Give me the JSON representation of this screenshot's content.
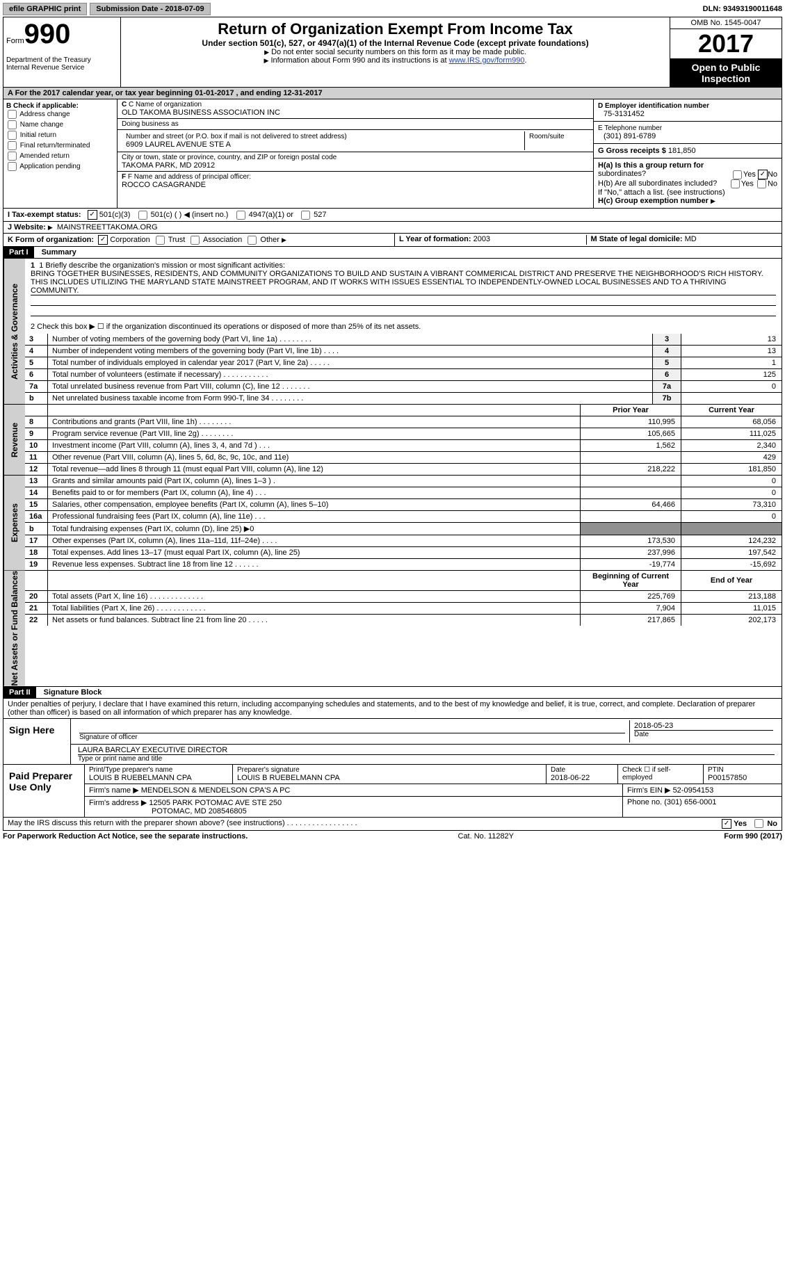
{
  "topbar": {
    "efile": "efile GRAPHIC print",
    "submission_label": "Submission Date - 2018-07-09",
    "dln": "DLN: 93493190011648"
  },
  "header": {
    "form_prefix": "Form",
    "form_number": "990",
    "dept1": "Department of the Treasury",
    "dept2": "Internal Revenue Service",
    "title": "Return of Organization Exempt From Income Tax",
    "subtitle": "Under section 501(c), 527, or 4947(a)(1) of the Internal Revenue Code (except private foundations)",
    "instr1": "Do not enter social security numbers on this form as it may be made public.",
    "instr2_pre": "Information about Form 990 and its instructions is at ",
    "instr2_link": "www.IRS.gov/form990",
    "omb": "OMB No. 1545-0047",
    "year": "2017",
    "open_pub": "Open to Public Inspection"
  },
  "row_a": "A  For the 2017 calendar year, or tax year beginning 01-01-2017   , and ending 12-31-2017",
  "col_b": {
    "label": "B Check if applicable:",
    "addr_change": "Address change",
    "name_change": "Name change",
    "initial": "Initial return",
    "final": "Final return/terminated",
    "amended": "Amended return",
    "app_pending": "Application pending"
  },
  "col_c": {
    "name_label": "C Name of organization",
    "name": "OLD TAKOMA BUSINESS ASSOCIATION INC",
    "dba_label": "Doing business as",
    "dba": "",
    "addr_label": "Number and street (or P.O. box if mail is not delivered to street address)",
    "room_label": "Room/suite",
    "addr": "6909 LAUREL AVENUE STE A",
    "city_label": "City or town, state or province, country, and ZIP or foreign postal code",
    "city": "TAKOMA PARK, MD  20912",
    "officer_label": "F Name and address of principal officer:",
    "officer": "ROCCO CASAGRANDE"
  },
  "col_d": {
    "ein_label": "D Employer identification number",
    "ein": "75-3131452",
    "tel_label": "E Telephone number",
    "tel": "(301) 891-6789",
    "gross_label": "G Gross receipts $",
    "gross": "181,850"
  },
  "col_h": {
    "ha_label": "H(a)  Is this a group return for",
    "ha_label2": "subordinates?",
    "hb_label": "H(b)  Are all subordinates included?",
    "hb_note": "If \"No,\" attach a list. (see instructions)",
    "hc_label": "H(c)  Group exemption number",
    "yes": "Yes",
    "no": "No"
  },
  "tax_exempt": {
    "label": "I  Tax-exempt status:",
    "c3": "501(c)(3)",
    "c": "501(c) (   )",
    "c_note": "(insert no.)",
    "a1": "4947(a)(1) or",
    "s527": "527"
  },
  "website": {
    "label": "J  Website:",
    "val": "MAINSTREETTAKOMA.ORG"
  },
  "row_k": {
    "label": "K Form of organization:",
    "corp": "Corporation",
    "trust": "Trust",
    "assoc": "Association",
    "other": "Other"
  },
  "row_lm": {
    "l_label": "L Year of formation:",
    "l_val": "2003",
    "m_label": "M State of legal domicile:",
    "m_val": "MD"
  },
  "part1": {
    "header": "Part I",
    "label": "Summary",
    "sidebar_gov": "Activities & Governance",
    "sidebar_rev": "Revenue",
    "sidebar_exp": "Expenses",
    "sidebar_net": "Net Assets or Fund Balances",
    "line1_label": "1  Briefly describe the organization's mission or most significant activities:",
    "mission": "BRING TOGETHER BUSINESSES, RESIDENTS, AND COMMUNITY ORGANIZATIONS TO BUILD AND SUSTAIN A VIBRANT COMMERICAL DISTRICT AND PRESERVE THE NEIGHBORHOOD'S RICH HISTORY. THIS INCLUDES UTILIZING THE MARYLAND STATE MAINSTREET PROGRAM, AND IT WORKS WITH ISSUES ESSENTIAL TO INDEPENDENTLY-OWNED LOCAL BUSINESSES AND TO A THRIVING COMMUNITY.",
    "line2": "2   Check this box ▶ ☐  if the organization discontinued its operations or disposed of more than 25% of its net assets.",
    "rows_gov": [
      {
        "n": "3",
        "desc": "Number of voting members of the governing body (Part VI, line 1a)  .  .  .  .  .  .  .  .",
        "ln": "3",
        "v": "13"
      },
      {
        "n": "4",
        "desc": "Number of independent voting members of the governing body (Part VI, line 1b)  .  .  .  .",
        "ln": "4",
        "v": "13"
      },
      {
        "n": "5",
        "desc": "Total number of individuals employed in calendar year 2017 (Part V, line 2a)  .  .  .  .  .",
        "ln": "5",
        "v": "1"
      },
      {
        "n": "6",
        "desc": "Total number of volunteers (estimate if necessary)  .  .  .  .  .  .  .  .  .  .  .",
        "ln": "6",
        "v": "125"
      },
      {
        "n": "7a",
        "desc": "Total unrelated business revenue from Part VIII, column (C), line 12  .  .  .  .  .  .  .",
        "ln": "7a",
        "v": "0"
      },
      {
        "n": "b",
        "desc": "Net unrelated business taxable income from Form 990-T, line 34  .  .  .  .  .  .  .  .",
        "ln": "7b",
        "v": ""
      }
    ],
    "col_prior": "Prior Year",
    "col_current": "Current Year",
    "rows_rev": [
      {
        "n": "8",
        "desc": "Contributions and grants (Part VIII, line 1h)  .  .  .  .  .  .  .  .",
        "p": "110,995",
        "c": "68,056"
      },
      {
        "n": "9",
        "desc": "Program service revenue (Part VIII, line 2g)  .  .  .  .  .  .  .  .",
        "p": "105,665",
        "c": "111,025"
      },
      {
        "n": "10",
        "desc": "Investment income (Part VIII, column (A), lines 3, 4, and 7d )  .  .  .",
        "p": "1,562",
        "c": "2,340"
      },
      {
        "n": "11",
        "desc": "Other revenue (Part VIII, column (A), lines 5, 6d, 8c, 9c, 10c, and 11e)",
        "p": "",
        "c": "429"
      },
      {
        "n": "12",
        "desc": "Total revenue—add lines 8 through 11 (must equal Part VIII, column (A), line 12)",
        "p": "218,222",
        "c": "181,850"
      }
    ],
    "rows_exp": [
      {
        "n": "13",
        "desc": "Grants and similar amounts paid (Part IX, column (A), lines 1–3 )  .",
        "p": "",
        "c": "0"
      },
      {
        "n": "14",
        "desc": "Benefits paid to or for members (Part IX, column (A), line 4)  .  .  .",
        "p": "",
        "c": "0"
      },
      {
        "n": "15",
        "desc": "Salaries, other compensation, employee benefits (Part IX, column (A), lines 5–10)",
        "p": "64,466",
        "c": "73,310"
      },
      {
        "n": "16a",
        "desc": "Professional fundraising fees (Part IX, column (A), line 11e)  .  .  .",
        "p": "",
        "c": "0"
      },
      {
        "n": "b",
        "desc": "Total fundraising expenses (Part IX, column (D), line 25) ▶0",
        "p": "grey",
        "c": "grey"
      },
      {
        "n": "17",
        "desc": "Other expenses (Part IX, column (A), lines 11a–11d, 11f–24e)  .  .  .  .",
        "p": "173,530",
        "c": "124,232"
      },
      {
        "n": "18",
        "desc": "Total expenses. Add lines 13–17 (must equal Part IX, column (A), line 25)",
        "p": "237,996",
        "c": "197,542"
      },
      {
        "n": "19",
        "desc": "Revenue less expenses. Subtract line 18 from line 12  .  .  .  .  .  .",
        "p": "-19,774",
        "c": "-15,692"
      }
    ],
    "col_begin": "Beginning of Current Year",
    "col_end": "End of Year",
    "rows_net": [
      {
        "n": "20",
        "desc": "Total assets (Part X, line 16)  .  .  .  .  .  .  .  .  .  .  .  .  .",
        "p": "225,769",
        "c": "213,188"
      },
      {
        "n": "21",
        "desc": "Total liabilities (Part X, line 26)  .  .  .  .  .  .  .  .  .  .  .  .",
        "p": "7,904",
        "c": "11,015"
      },
      {
        "n": "22",
        "desc": "Net assets or fund balances. Subtract line 21 from line 20  .  .  .  .  .",
        "p": "217,865",
        "c": "202,173"
      }
    ]
  },
  "part2": {
    "header": "Part II",
    "label": "Signature Block",
    "perjury": "Under penalties of perjury, I declare that I have examined this return, including accompanying schedules and statements, and to the best of my knowledge and belief, it is true, correct, and complete. Declaration of preparer (other than officer) is based on all information of which preparer has any knowledge.",
    "sign_here": "Sign Here",
    "sig_label": "Signature of officer",
    "sig_date": "2018-05-23",
    "date_label": "Date",
    "name_title": "LAURA BARCLAY EXECUTIVE DIRECTOR",
    "name_label": "Type or print name and title",
    "paid_prep": "Paid Preparer Use Only",
    "prep_name_label": "Print/Type preparer's name",
    "prep_name": "LOUIS B RUEBELMANN CPA",
    "prep_sig_label": "Preparer's signature",
    "prep_sig": "LOUIS B RUEBELMANN CPA",
    "prep_date_label": "Date",
    "prep_date": "2018-06-22",
    "check_label": "Check ☐ if self-employed",
    "ptin_label": "PTIN",
    "ptin": "P00157850",
    "firm_name_label": "Firm's name    ▶",
    "firm_name": "MENDELSON & MENDELSON CPA'S A PC",
    "firm_ein_label": "Firm's EIN ▶",
    "firm_ein": "52-0954153",
    "firm_addr_label": "Firm's address ▶",
    "firm_addr1": "12505 PARK POTOMAC AVE STE 250",
    "firm_addr2": "POTOMAC, MD  208546805",
    "phone_label": "Phone no.",
    "phone": "(301) 656-0001",
    "discuss": "May the IRS discuss this return with the preparer shown above? (see instructions)  .  .  .  .  .  .  .  .  .  .  .  .  .  .  .  .  .",
    "yes": "Yes",
    "no": "No"
  },
  "footer": {
    "pra": "For Paperwork Reduction Act Notice, see the separate instructions.",
    "cat": "Cat. No. 11282Y",
    "form": "Form 990 (2017)"
  }
}
